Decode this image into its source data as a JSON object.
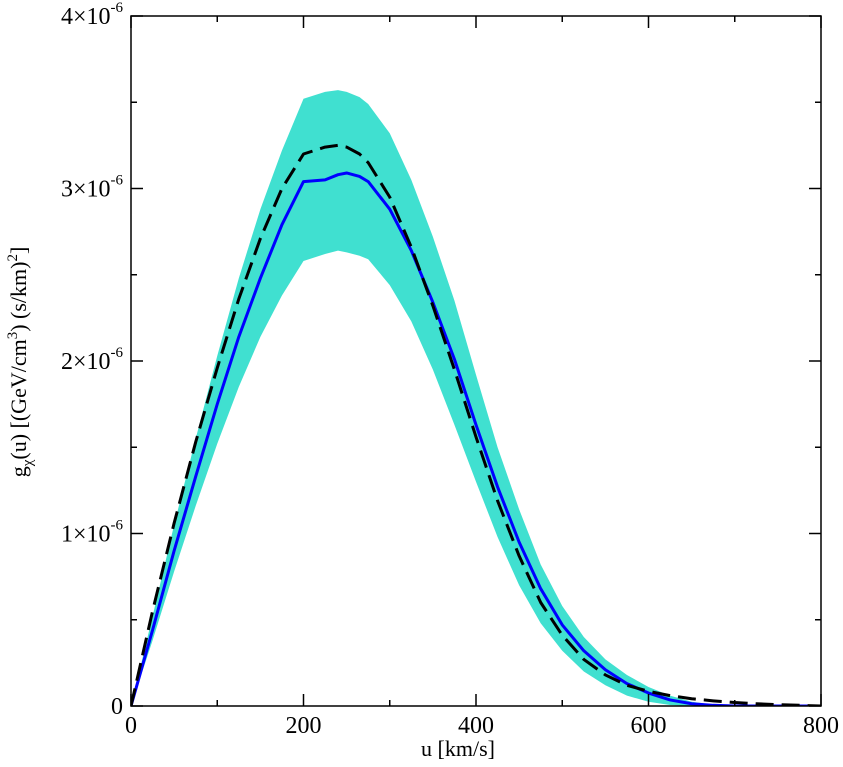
{
  "chart_data": {
    "type": "line",
    "title": "",
    "xlabel": "u [km/s]",
    "ylabel": {
      "prefix": "g",
      "subscript": "χ",
      "middle": "(u) [(GeV/cm",
      "sup1": "3",
      "middle2": ") (s/km)",
      "sup2": "2",
      "suffix": "]"
    },
    "xlim": [
      0,
      800
    ],
    "ylim": [
      0,
      4e-06
    ],
    "grid": false,
    "x_ticks": [
      {
        "value": 0,
        "label": "0"
      },
      {
        "value": 200,
        "label": "200"
      },
      {
        "value": 400,
        "label": "400"
      },
      {
        "value": 600,
        "label": "600"
      },
      {
        "value": 800,
        "label": "800"
      }
    ],
    "y_ticks": [
      {
        "value": 0,
        "mantissa": "0",
        "exponent": ""
      },
      {
        "value": 1e-06,
        "mantissa": "1×10",
        "exponent": "-6"
      },
      {
        "value": 2e-06,
        "mantissa": "2×10",
        "exponent": "-6"
      },
      {
        "value": 3e-06,
        "mantissa": "3×10",
        "exponent": "-6"
      },
      {
        "value": 4e-06,
        "mantissa": "4×10",
        "exponent": "-6"
      }
    ],
    "colors": {
      "band": "#40e0d0",
      "solid": "#0000ff",
      "dashed": "#000000",
      "axes": "#000000"
    },
    "band": {
      "name": "uncertainty band",
      "x": [
        0,
        25,
        50,
        75,
        100,
        125,
        150,
        175,
        200,
        225,
        240,
        250,
        265,
        275,
        300,
        325,
        350,
        375,
        400,
        425,
        450,
        475,
        500,
        525,
        550,
        575,
        600,
        625,
        650,
        675,
        700,
        725,
        750,
        775,
        800
      ],
      "lower": [
        0,
        3.8e-07,
        7.8e-07,
        1.16e-06,
        1.52e-06,
        1.85e-06,
        2.14e-06,
        2.38e-06,
        2.58e-06,
        2.62e-06,
        2.64e-06,
        2.63e-06,
        2.61e-06,
        2.59e-06,
        2.44e-06,
        2.23e-06,
        1.95e-06,
        1.63e-06,
        1.3e-06,
        9.8e-07,
        7e-07,
        4.8e-07,
        3.2e-07,
        2e-07,
        1.2e-07,
        6e-08,
        2.5e-08,
        6e-09,
        0.0,
        0.0,
        0.0,
        0.0,
        0.0,
        0.0,
        0.0
      ],
      "upper": [
        0,
        5.2e-07,
        1.05e-06,
        1.55e-06,
        2.03e-06,
        2.48e-06,
        2.88e-06,
        3.22e-06,
        3.52e-06,
        3.56e-06,
        3.57e-06,
        3.56e-06,
        3.53e-06,
        3.49e-06,
        3.32e-06,
        3.05e-06,
        2.72e-06,
        2.35e-06,
        1.92e-06,
        1.5e-06,
        1.14e-06,
        8.2e-07,
        5.8e-07,
        4e-07,
        2.7e-07,
        1.8e-07,
        1.1e-07,
        6e-08,
        2.5e-08,
        8e-09,
        0.0,
        0.0,
        0.0,
        0.0,
        0.0
      ]
    },
    "series": [
      {
        "name": "solid",
        "style": "solid",
        "x": [
          0,
          25,
          50,
          75,
          100,
          125,
          150,
          175,
          200,
          225,
          240,
          250,
          265,
          275,
          300,
          325,
          350,
          375,
          400,
          425,
          450,
          475,
          500,
          525,
          550,
          575,
          600,
          625,
          650,
          675,
          700,
          725,
          750,
          775,
          800
        ],
        "values": [
          0,
          4.4e-07,
          9e-07,
          1.33e-06,
          1.75e-06,
          2.14e-06,
          2.48e-06,
          2.79e-06,
          3.04e-06,
          3.05e-06,
          3.08e-06,
          3.09e-06,
          3.07e-06,
          3.04e-06,
          2.88e-06,
          2.64e-06,
          2.34e-06,
          2.01e-06,
          1.63e-06,
          1.27e-06,
          9.5e-07,
          6.8e-07,
          4.7e-07,
          3.2e-07,
          2.1e-07,
          1.3e-07,
          7.5e-08,
          3.5e-08,
          1.3e-08,
          4e-09,
          0.0,
          0.0,
          0.0,
          0.0,
          0.0
        ]
      },
      {
        "name": "dashed",
        "style": "dashed",
        "x": [
          0,
          25,
          50,
          75,
          100,
          125,
          150,
          175,
          200,
          225,
          240,
          250,
          265,
          275,
          300,
          325,
          350,
          375,
          400,
          425,
          450,
          475,
          500,
          525,
          550,
          575,
          600,
          625,
          650,
          675,
          700,
          725,
          750,
          775,
          800
        ],
        "values": [
          0,
          5.5e-07,
          1.06e-06,
          1.53e-06,
          1.96e-06,
          2.36e-06,
          2.71e-06,
          3e-06,
          3.2e-06,
          3.24e-06,
          3.25e-06,
          3.24e-06,
          3.2e-06,
          3.15e-06,
          2.95e-06,
          2.66e-06,
          2.32e-06,
          1.95e-06,
          1.56e-06,
          1.19e-06,
          8.7e-07,
          6e-07,
          4.1e-07,
          2.7e-07,
          1.8e-07,
          1.2e-07,
          8.5e-08,
          6e-08,
          4.2e-08,
          3e-08,
          2e-08,
          1.3e-08,
          8e-09,
          4e-09,
          0.0
        ]
      }
    ]
  }
}
